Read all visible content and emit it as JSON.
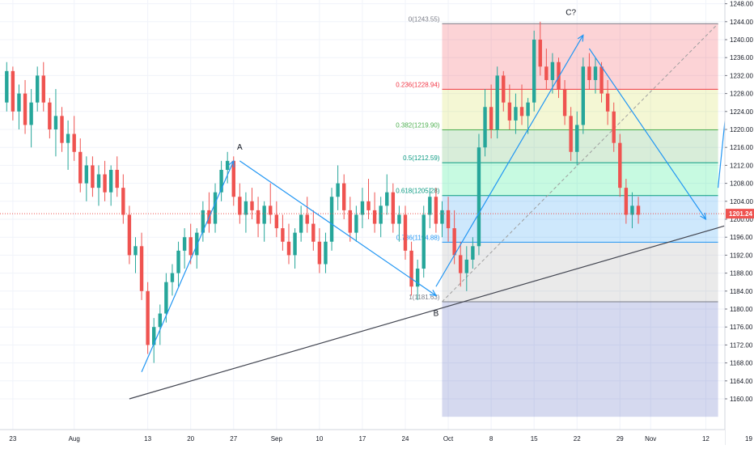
{
  "chart_data": {
    "type": "candlestick",
    "title": "",
    "xlabel": "",
    "ylabel": "",
    "ylim": [
      1156,
      1248
    ],
    "y_ticks": [
      1160,
      1164,
      1168,
      1172,
      1176,
      1180,
      1184,
      1188,
      1192,
      1196,
      1200,
      1204,
      1208,
      1212,
      1216,
      1220,
      1224,
      1228,
      1232,
      1236,
      1240,
      1244,
      1248
    ],
    "x_ticks": [
      {
        "bar": 1,
        "label": "23"
      },
      {
        "bar": 11,
        "label": "Aug"
      },
      {
        "bar": 23,
        "label": "13"
      },
      {
        "bar": 30,
        "label": "20"
      },
      {
        "bar": 37,
        "label": "27"
      },
      {
        "bar": 44,
        "label": "Sep"
      },
      {
        "bar": 51,
        "label": "10"
      },
      {
        "bar": 58,
        "label": "17"
      },
      {
        "bar": 65,
        "label": "24"
      },
      {
        "bar": 72,
        "label": "Oct"
      },
      {
        "bar": 79,
        "label": "8"
      },
      {
        "bar": 86,
        "label": "15"
      },
      {
        "bar": 93,
        "label": "22"
      },
      {
        "bar": 100,
        "label": "29"
      },
      {
        "bar": 105,
        "label": "Nov"
      },
      {
        "bar": 114,
        "label": "12"
      },
      {
        "bar": 121,
        "label": "19"
      }
    ],
    "ohlc": [
      [
        1226,
        1235,
        1224,
        1233
      ],
      [
        1233,
        1234,
        1222,
        1224
      ],
      [
        1224,
        1230,
        1220,
        1228
      ],
      [
        1228,
        1231,
        1219,
        1221
      ],
      [
        1221,
        1229,
        1216,
        1226
      ],
      [
        1226,
        1234,
        1224,
        1232
      ],
      [
        1232,
        1235,
        1224,
        1226
      ],
      [
        1226,
        1227,
        1218,
        1220
      ],
      [
        1220,
        1229,
        1214,
        1223
      ],
      [
        1223,
        1225,
        1215,
        1217
      ],
      [
        1217,
        1222,
        1211,
        1219
      ],
      [
        1219,
        1223,
        1213,
        1215
      ],
      [
        1215,
        1218,
        1206,
        1208
      ],
      [
        1208,
        1214,
        1204,
        1212
      ],
      [
        1212,
        1214,
        1205,
        1207
      ],
      [
        1207,
        1212,
        1203,
        1210
      ],
      [
        1210,
        1213,
        1204,
        1206
      ],
      [
        1206,
        1212,
        1203,
        1211
      ],
      [
        1211,
        1214,
        1205,
        1207
      ],
      [
        1207,
        1210,
        1199,
        1201
      ],
      [
        1201,
        1203,
        1190,
        1192
      ],
      [
        1192,
        1196,
        1188,
        1194
      ],
      [
        1194,
        1197,
        1182,
        1184
      ],
      [
        1184,
        1186,
        1170,
        1172
      ],
      [
        1172,
        1178,
        1168,
        1176
      ],
      [
        1176,
        1181,
        1172,
        1179
      ],
      [
        1179,
        1188,
        1177,
        1186
      ],
      [
        1186,
        1190,
        1183,
        1188
      ],
      [
        1188,
        1195,
        1185,
        1193
      ],
      [
        1193,
        1198,
        1189,
        1196
      ],
      [
        1196,
        1199,
        1190,
        1192
      ],
      [
        1192,
        1198,
        1189,
        1197
      ],
      [
        1197,
        1204,
        1195,
        1202
      ],
      [
        1202,
        1206,
        1197,
        1199
      ],
      [
        1199,
        1208,
        1197,
        1206
      ],
      [
        1206,
        1213,
        1204,
        1211
      ],
      [
        1211,
        1215,
        1208,
        1213
      ],
      [
        1213,
        1214,
        1203,
        1205
      ],
      [
        1205,
        1208,
        1199,
        1201
      ],
      [
        1201,
        1206,
        1197,
        1204
      ],
      [
        1204,
        1207,
        1200,
        1202
      ],
      [
        1202,
        1205,
        1196,
        1199
      ],
      [
        1199,
        1204,
        1195,
        1203
      ],
      [
        1203,
        1208,
        1199,
        1201
      ],
      [
        1201,
        1204,
        1196,
        1198
      ],
      [
        1198,
        1201,
        1193,
        1195
      ],
      [
        1195,
        1199,
        1190,
        1192
      ],
      [
        1192,
        1198,
        1189,
        1197
      ],
      [
        1197,
        1203,
        1195,
        1201
      ],
      [
        1201,
        1205,
        1197,
        1199
      ],
      [
        1199,
        1202,
        1193,
        1195
      ],
      [
        1195,
        1198,
        1188,
        1190
      ],
      [
        1190,
        1197,
        1188,
        1195
      ],
      [
        1195,
        1207,
        1193,
        1205
      ],
      [
        1205,
        1212,
        1202,
        1208
      ],
      [
        1208,
        1210,
        1200,
        1202
      ],
      [
        1202,
        1205,
        1195,
        1197
      ],
      [
        1197,
        1203,
        1195,
        1201
      ],
      [
        1201,
        1207,
        1198,
        1204
      ],
      [
        1204,
        1209,
        1200,
        1202
      ],
      [
        1202,
        1206,
        1197,
        1199
      ],
      [
        1199,
        1205,
        1196,
        1203
      ],
      [
        1203,
        1210,
        1201,
        1206
      ],
      [
        1206,
        1208,
        1197,
        1199
      ],
      [
        1199,
        1203,
        1195,
        1201
      ],
      [
        1201,
        1203,
        1191,
        1193
      ],
      [
        1193,
        1195,
        1183,
        1185
      ],
      [
        1185,
        1191,
        1182,
        1189
      ],
      [
        1189,
        1203,
        1187,
        1201
      ],
      [
        1201,
        1207,
        1198,
        1205
      ],
      [
        1205,
        1207,
        1197,
        1199
      ],
      [
        1199,
        1204,
        1196,
        1202
      ],
      [
        1202,
        1205,
        1195,
        1198
      ],
      [
        1198,
        1202,
        1190,
        1192
      ],
      [
        1192,
        1195,
        1185,
        1188
      ],
      [
        1188,
        1194,
        1184,
        1191
      ],
      [
        1191,
        1196,
        1189,
        1194
      ],
      [
        1194,
        1219,
        1192,
        1216
      ],
      [
        1216,
        1229,
        1214,
        1225
      ],
      [
        1225,
        1230,
        1218,
        1220
      ],
      [
        1220,
        1234,
        1218,
        1232
      ],
      [
        1232,
        1233,
        1224,
        1226
      ],
      [
        1226,
        1230,
        1220,
        1222
      ],
      [
        1222,
        1228,
        1219,
        1225
      ],
      [
        1225,
        1230,
        1221,
        1223
      ],
      [
        1223,
        1227,
        1219,
        1226
      ],
      [
        1226,
        1242,
        1224,
        1240
      ],
      [
        1240,
        1244,
        1232,
        1234
      ],
      [
        1234,
        1238,
        1229,
        1231
      ],
      [
        1231,
        1237,
        1228,
        1235
      ],
      [
        1235,
        1236,
        1227,
        1229
      ],
      [
        1229,
        1231,
        1221,
        1223
      ],
      [
        1223,
        1225,
        1213,
        1215
      ],
      [
        1215,
        1224,
        1212,
        1221
      ],
      [
        1221,
        1236,
        1219,
        1234
      ],
      [
        1234,
        1237,
        1229,
        1231
      ],
      [
        1231,
        1236,
        1228,
        1234
      ],
      [
        1234,
        1235,
        1226,
        1228
      ],
      [
        1228,
        1231,
        1221,
        1224
      ],
      [
        1224,
        1226,
        1215,
        1217
      ],
      [
        1217,
        1219,
        1205,
        1207
      ],
      [
        1207,
        1209,
        1199,
        1201
      ],
      [
        1201,
        1206,
        1198,
        1203
      ],
      [
        1203,
        1205,
        1199,
        1201
      ]
    ],
    "current_price": "1201.24",
    "fibonacci": {
      "levels": [
        {
          "label": "0(1243.55)",
          "price": 1243.55,
          "label_color": "#787b86"
        },
        {
          "label": "0.236(1228.94)",
          "price": 1228.94,
          "label_color": "#f23645"
        },
        {
          "label": "0.382(1219.90)",
          "price": 1219.9,
          "label_color": "#4caf50"
        },
        {
          "label": "0.5(1212.59)",
          "price": 1212.59,
          "label_color": "#089981"
        },
        {
          "label": "0.618(1205.28)",
          "price": 1205.28,
          "label_color": "#089981"
        },
        {
          "label": "0.786(1194.88)",
          "price": 1194.88,
          "label_color": "#2196f3"
        },
        {
          "label": "1(1181.63)",
          "price": 1181.63,
          "label_color": "#787b86"
        }
      ],
      "zones": [
        {
          "from": 1243.55,
          "to": 1228.94,
          "color": "#f23645"
        },
        {
          "from": 1228.94,
          "to": 1219.9,
          "color": "#cddc39"
        },
        {
          "from": 1219.9,
          "to": 1212.59,
          "color": "#4caf50"
        },
        {
          "from": 1212.59,
          "to": 1205.28,
          "color": "#00e676"
        },
        {
          "from": 1205.28,
          "to": 1194.88,
          "color": "#2196f3"
        },
        {
          "from": 1194.88,
          "to": 1181.63,
          "color": "#9e9e9e"
        },
        {
          "from": 1181.63,
          "to": 1156,
          "color": "#3f51b5"
        }
      ]
    },
    "annotations": [
      {
        "text": "A",
        "bar": 38,
        "price": 1215.5
      },
      {
        "text": "B",
        "bar": 70,
        "price": 1178.5
      },
      {
        "text": "C?",
        "bar": 92,
        "price": 1245.5
      }
    ],
    "wave_arrows": [
      [
        [
          22,
          1166
        ],
        [
          37,
          1213
        ]
      ],
      [
        [
          38,
          1213
        ],
        [
          70,
          1183
        ]
      ],
      [
        [
          70,
          1185
        ],
        [
          94,
          1241
        ]
      ],
      [
        [
          95,
          1238
        ],
        [
          114,
          1200
        ]
      ],
      [
        [
          116,
          1207
        ],
        [
          119,
          1247
        ]
      ]
    ],
    "trendline": [
      [
        20,
        1160
      ],
      [
        117,
        1198.5
      ]
    ],
    "fib_diagonal": [
      [
        71,
        1181.63
      ],
      [
        116,
        1243.55
      ]
    ],
    "colors": {
      "up": "#26a69a",
      "down": "#ef5350",
      "price_tag": "#ef5350",
      "arrow": "#2196f3"
    }
  }
}
